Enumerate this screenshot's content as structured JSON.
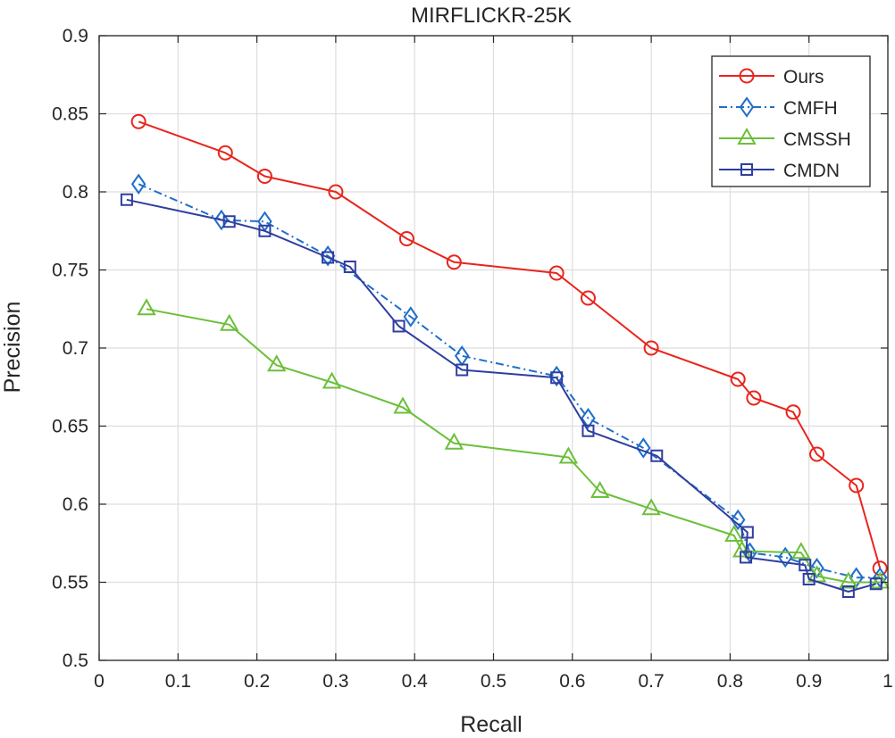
{
  "chart_data": {
    "type": "line",
    "title": "MIRFLICKR-25K",
    "xlabel": "Recall",
    "ylabel": "Precision",
    "xlim": [
      0,
      1
    ],
    "ylim": [
      0.5,
      0.9
    ],
    "xticks": [
      "0",
      "0.1",
      "0.2",
      "0.3",
      "0.4",
      "0.5",
      "0.6",
      "0.7",
      "0.8",
      "0.9",
      "1"
    ],
    "yticks": [
      "0.5",
      "0.55",
      "0.6",
      "0.65",
      "0.7",
      "0.75",
      "0.8",
      "0.85",
      "0.9"
    ],
    "grid": true,
    "legend_position": "top-right",
    "series": [
      {
        "name": "Ours",
        "color": "#e8251d",
        "marker": "circle",
        "line": "solid",
        "x": [
          0.05,
          0.16,
          0.21,
          0.3,
          0.39,
          0.45,
          0.58,
          0.62,
          0.7,
          0.81,
          0.83,
          0.88,
          0.91,
          0.96,
          0.99
        ],
        "y": [
          0.845,
          0.825,
          0.81,
          0.8,
          0.77,
          0.755,
          0.748,
          0.732,
          0.7,
          0.68,
          0.668,
          0.659,
          0.632,
          0.612,
          0.559
        ]
      },
      {
        "name": "CMFH",
        "color": "#1f6fc9",
        "marker": "diamond",
        "line": "dashdot",
        "x": [
          0.05,
          0.155,
          0.21,
          0.29,
          0.395,
          0.46,
          0.58,
          0.62,
          0.69,
          0.81,
          0.825,
          0.87,
          0.91,
          0.96,
          0.99
        ],
        "y": [
          0.805,
          0.782,
          0.781,
          0.759,
          0.72,
          0.695,
          0.682,
          0.655,
          0.636,
          0.59,
          0.569,
          0.566,
          0.559,
          0.553,
          0.553
        ]
      },
      {
        "name": "CMSSH",
        "color": "#6cbf3a",
        "marker": "triangle",
        "line": "solid",
        "x": [
          0.06,
          0.165,
          0.225,
          0.295,
          0.385,
          0.45,
          0.595,
          0.635,
          0.7,
          0.805,
          0.815,
          0.89,
          0.91,
          0.95,
          0.99
        ],
        "y": [
          0.725,
          0.715,
          0.689,
          0.678,
          0.662,
          0.639,
          0.63,
          0.608,
          0.597,
          0.58,
          0.57,
          0.569,
          0.554,
          0.55,
          0.55
        ]
      },
      {
        "name": "CMDN",
        "color": "#2f3ea0",
        "marker": "square",
        "line": "solid",
        "x": [
          0.035,
          0.165,
          0.21,
          0.29,
          0.318,
          0.38,
          0.46,
          0.58,
          0.62,
          0.707,
          0.822,
          0.82,
          0.895,
          0.9,
          0.95,
          0.985
        ],
        "y": [
          0.795,
          0.781,
          0.775,
          0.758,
          0.752,
          0.714,
          0.686,
          0.681,
          0.647,
          0.631,
          0.582,
          0.566,
          0.561,
          0.552,
          0.544,
          0.549
        ]
      }
    ]
  }
}
